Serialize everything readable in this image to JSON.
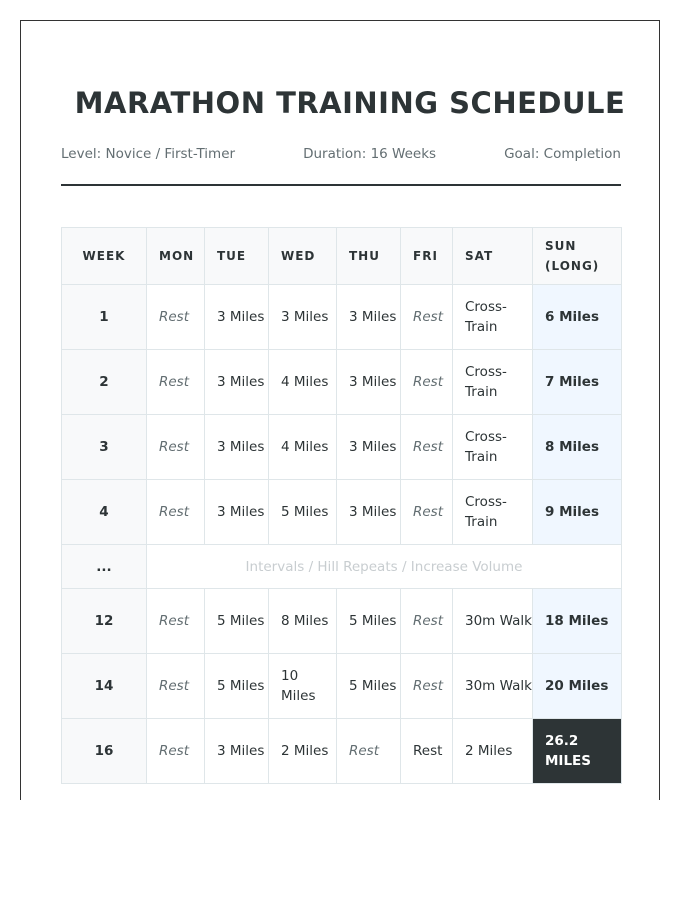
{
  "title": "MARATHON TRAINING SCHEDULE",
  "meta": {
    "level": "Level: Novice / First-Timer",
    "duration": "Duration: 16 Weeks",
    "goal": "Goal: Completion"
  },
  "colors": {
    "text": "#2d3436",
    "muted": "#636e72",
    "highlight": "#f0f7ff",
    "final": "#2d3436"
  },
  "table": {
    "headers": [
      "WEEK",
      "MON",
      "TUE",
      "WED",
      "THU",
      "FRI",
      "SAT",
      "SUN (LONG)"
    ],
    "rows": [
      {
        "week": "1",
        "cells": [
          "Rest",
          "3 Miles",
          "3 Miles",
          "3 Miles",
          "Rest",
          "Cross-Train",
          "6 Miles"
        ]
      },
      {
        "week": "2",
        "cells": [
          "Rest",
          "3 Miles",
          "4 Miles",
          "3 Miles",
          "Rest",
          "Cross-Train",
          "7 Miles"
        ]
      },
      {
        "week": "3",
        "cells": [
          "Rest",
          "3 Miles",
          "4 Miles",
          "3 Miles",
          "Rest",
          "Cross-Train",
          "8 Miles"
        ]
      },
      {
        "week": "4",
        "cells": [
          "Rest",
          "3 Miles",
          "5 Miles",
          "3 Miles",
          "Rest",
          "Cross-Train",
          "9 Miles"
        ]
      }
    ],
    "gap": {
      "week": "...",
      "note": "Intervals / Hill Repeats / Increase Volume"
    },
    "rows_late": [
      {
        "week": "12",
        "cells": [
          "Rest",
          "5 Miles",
          "8 Miles",
          "5 Miles",
          "Rest",
          "30m Walk",
          "18 Miles"
        ]
      },
      {
        "week": "14",
        "cells": [
          "Rest",
          "5 Miles",
          "10 Miles",
          "5 Miles",
          "Rest",
          "30m Walk",
          "20 Miles"
        ]
      },
      {
        "week": "16",
        "cells": [
          "Rest",
          "3 Miles",
          "2 Miles",
          "Rest",
          "Rest",
          "2 Miles",
          "26.2 MILES"
        ],
        "plain_rest_index": 4,
        "final": true
      }
    ]
  }
}
